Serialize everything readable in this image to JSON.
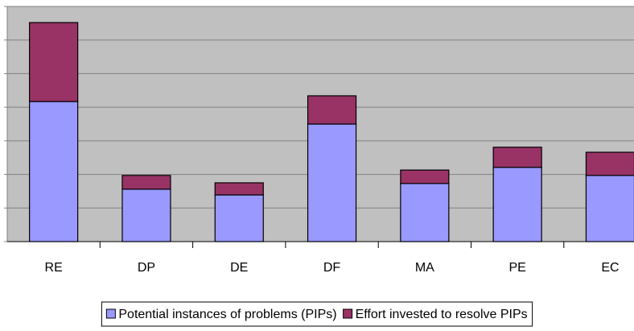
{
  "chart_data": {
    "type": "bar",
    "stacked": true,
    "categories": [
      "RE",
      "DP",
      "DE",
      "DF",
      "MA",
      "PE",
      "EC"
    ],
    "series": [
      {
        "name": "Potential instances of problems (PIPs)",
        "color": "#9999ff",
        "values": [
          4.17,
          1.56,
          1.39,
          3.5,
          1.73,
          2.21,
          1.97
        ]
      },
      {
        "name": "Effort invested to resolve PIPs",
        "color": "#993366",
        "values": [
          2.35,
          0.41,
          0.36,
          0.84,
          0.4,
          0.6,
          0.69
        ]
      }
    ],
    "ylim": [
      0,
      7
    ],
    "yticks": [
      0,
      1,
      2,
      3,
      4,
      5,
      6,
      7
    ],
    "grid": true,
    "legend": "bottom"
  }
}
